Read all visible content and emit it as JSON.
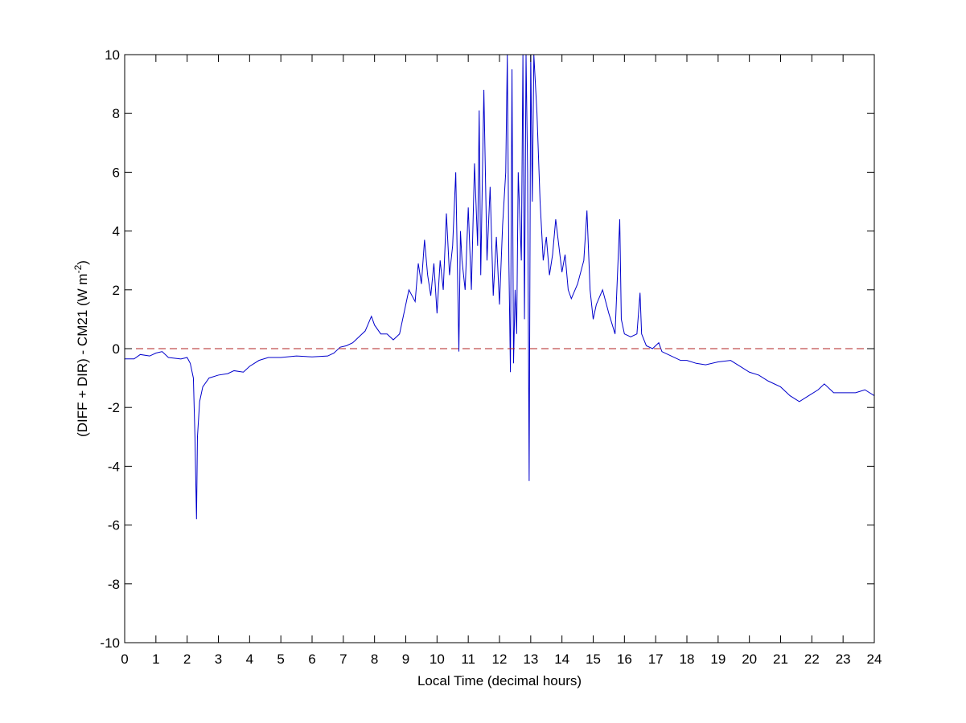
{
  "chart_data": {
    "type": "line",
    "xlabel": "Local Time (decimal hours)",
    "ylabel": [
      "(DIFF + DIR) - CM21 (W m",
      "-2",
      ")"
    ],
    "xlim": [
      0,
      24
    ],
    "ylim": [
      -10,
      10
    ],
    "xticks": [
      0,
      1,
      2,
      3,
      4,
      5,
      6,
      7,
      8,
      9,
      10,
      11,
      12,
      13,
      14,
      15,
      16,
      17,
      18,
      19,
      20,
      21,
      22,
      23,
      24
    ],
    "yticks": [
      -10,
      -8,
      -6,
      -4,
      -2,
      0,
      2,
      4,
      6,
      8,
      10
    ],
    "grid": false,
    "box": true,
    "series": [
      {
        "color": "#0000cc",
        "dashed": false,
        "x": [
          0,
          0.3,
          0.5,
          0.8,
          1.0,
          1.2,
          1.4,
          1.8,
          2.0,
          2.1,
          2.2,
          2.25,
          2.3,
          2.33,
          2.4,
          2.5,
          2.7,
          3.0,
          3.3,
          3.5,
          3.8,
          4.0,
          4.3,
          4.6,
          5.0,
          5.5,
          6.0,
          6.5,
          6.7,
          6.9,
          7.1,
          7.3,
          7.5,
          7.7,
          7.9,
          8.0,
          8.2,
          8.4,
          8.6,
          8.8,
          9.0,
          9.1,
          9.3,
          9.4,
          9.5,
          9.6,
          9.7,
          9.8,
          9.9,
          10.0,
          10.1,
          10.2,
          10.3,
          10.4,
          10.5,
          10.6,
          10.7,
          10.75,
          10.8,
          10.9,
          11.0,
          11.1,
          11.2,
          11.3,
          11.35,
          11.4,
          11.5,
          11.6,
          11.7,
          11.8,
          11.9,
          12.0,
          12.1,
          12.2,
          12.25,
          12.3,
          12.35,
          12.4,
          12.45,
          12.5,
          12.55,
          12.6,
          12.7,
          12.75,
          12.8,
          12.85,
          12.9,
          12.95,
          13.0,
          13.05,
          13.1,
          13.2,
          13.3,
          13.4,
          13.5,
          13.6,
          13.7,
          13.8,
          13.9,
          14.0,
          14.1,
          14.2,
          14.3,
          14.5,
          14.7,
          14.8,
          14.9,
          15.0,
          15.1,
          15.3,
          15.5,
          15.7,
          15.85,
          15.9,
          16.0,
          16.2,
          16.4,
          16.5,
          16.55,
          16.7,
          16.9,
          17.1,
          17.2,
          17.5,
          17.8,
          18.0,
          18.3,
          18.6,
          19.0,
          19.4,
          19.7,
          20.0,
          20.3,
          20.6,
          21.0,
          21.3,
          21.6,
          21.9,
          22.2,
          22.4,
          22.7,
          23.0,
          23.4,
          23.7,
          24.0
        ],
        "values": [
          -0.35,
          -0.35,
          -0.2,
          -0.25,
          -0.15,
          -0.1,
          -0.3,
          -0.35,
          -0.3,
          -0.5,
          -1.0,
          -3,
          -5.8,
          -3,
          -1.8,
          -1.3,
          -1.0,
          -0.9,
          -0.85,
          -0.75,
          -0.8,
          -0.6,
          -0.4,
          -0.3,
          -0.3,
          -0.25,
          -0.28,
          -0.25,
          -0.15,
          0.05,
          0.1,
          0.2,
          0.4,
          0.6,
          1.1,
          0.8,
          0.5,
          0.5,
          0.3,
          0.5,
          1.5,
          2.0,
          1.6,
          2.9,
          2.2,
          3.7,
          2.5,
          1.8,
          2.9,
          1.2,
          3.0,
          2.0,
          4.6,
          2.5,
          3.5,
          6.0,
          -0.1,
          4.0,
          3.0,
          2.0,
          4.8,
          2.0,
          6.3,
          3.5,
          8.1,
          2.5,
          8.8,
          3.0,
          5.5,
          1.8,
          3.8,
          1.5,
          4.2,
          6.0,
          10,
          3,
          -0.8,
          9.5,
          -0.5,
          2,
          0.5,
          6,
          3,
          10,
          1,
          10,
          6,
          -4.5,
          10,
          5,
          10,
          8,
          5,
          3,
          3.8,
          2.5,
          3.2,
          4.4,
          3.5,
          2.6,
          3.2,
          2.0,
          1.7,
          2.2,
          3.0,
          4.7,
          2.0,
          1.0,
          1.5,
          2.0,
          1.2,
          0.5,
          4.4,
          1.0,
          0.5,
          0.4,
          0.5,
          1.9,
          0.5,
          0.1,
          0.0,
          0.2,
          -0.1,
          -0.25,
          -0.4,
          -0.4,
          -0.5,
          -0.55,
          -0.45,
          -0.4,
          -0.6,
          -0.8,
          -0.9,
          -1.1,
          -1.3,
          -1.6,
          -1.8,
          -1.6,
          -1.4,
          -1.2,
          -1.5,
          -1.5,
          -1.5,
          -1.4,
          -1.6
        ]
      },
      {
        "color": "#b22222",
        "dashed": true,
        "x": [
          0,
          24
        ],
        "values": [
          0,
          0
        ]
      }
    ]
  }
}
